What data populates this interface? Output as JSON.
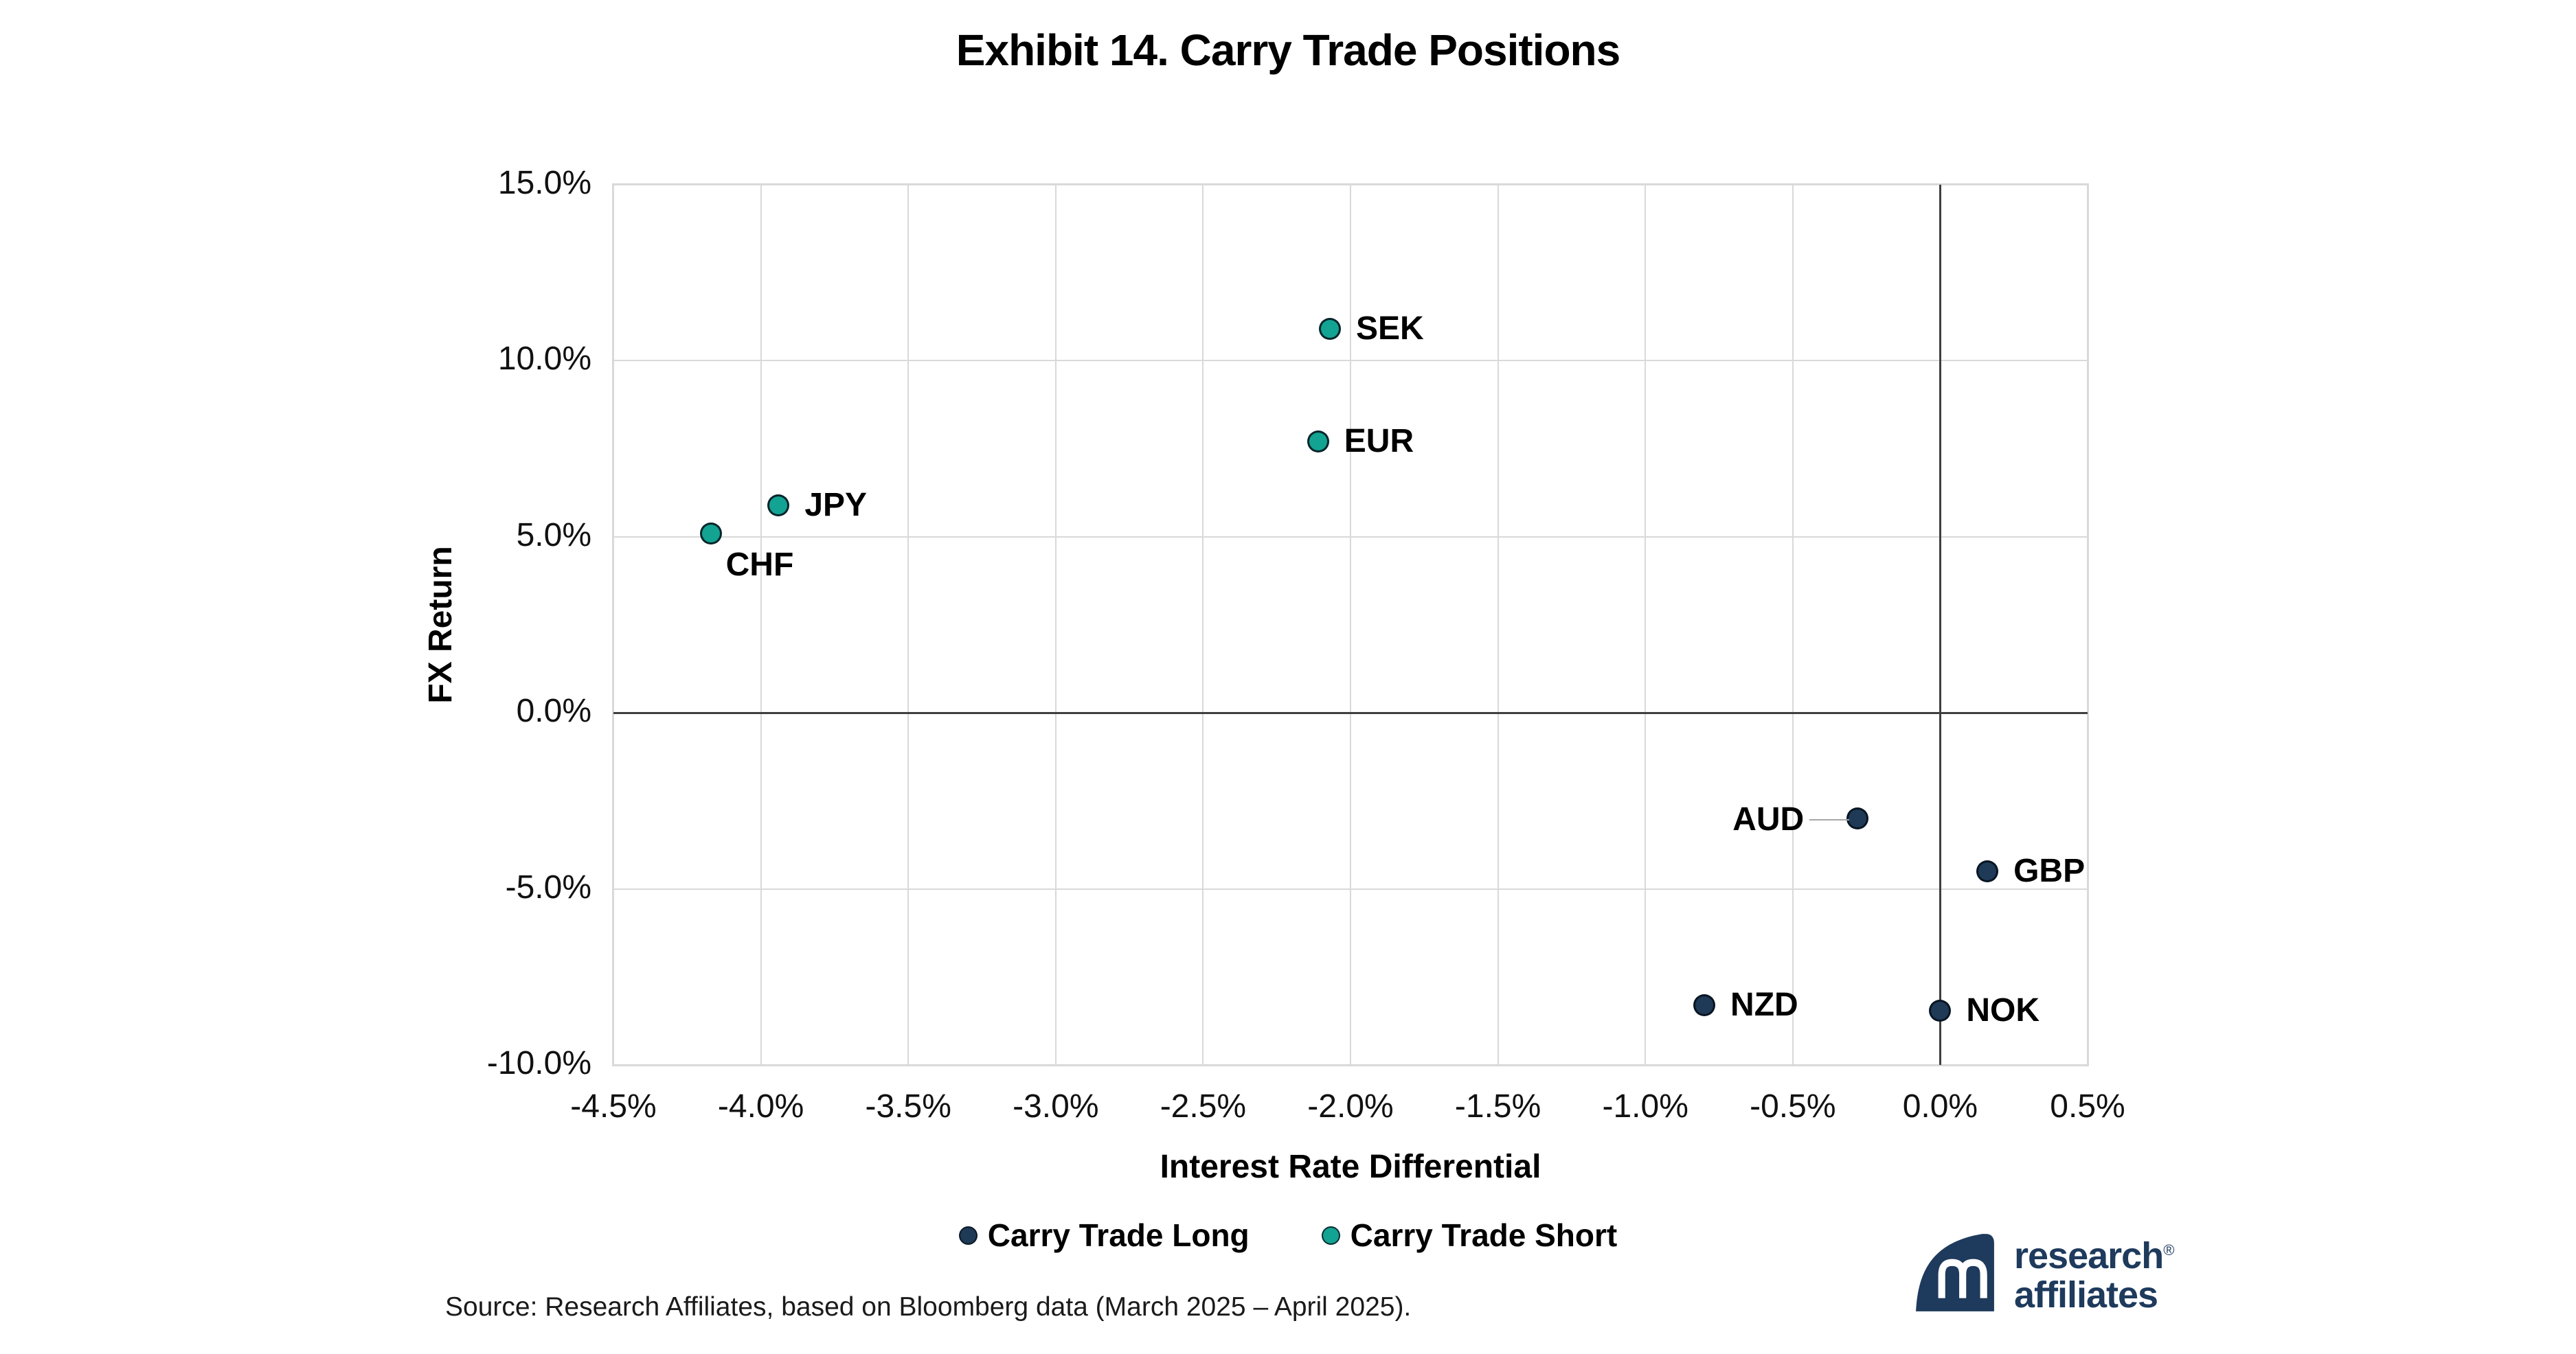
{
  "title": "Exhibit 14. Carry Trade Positions",
  "chart_data": {
    "type": "scatter",
    "title": "Exhibit 14. Carry Trade Positions",
    "xlabel": "Interest Rate Differential",
    "ylabel": "FX Return",
    "xlim": [
      -4.5,
      0.5
    ],
    "ylim": [
      -10.0,
      15.0
    ],
    "grid": true,
    "legend_position": "bottom",
    "x_tick_values": [
      -4.5,
      -4.0,
      -3.5,
      -3.0,
      -2.5,
      -2.0,
      -1.5,
      -1.0,
      -0.5,
      0.0,
      0.5
    ],
    "x_ticks": [
      "-4.5%",
      "-4.0%",
      "-3.5%",
      "-3.0%",
      "-2.5%",
      "-2.0%",
      "-1.5%",
      "-1.0%",
      "-0.5%",
      "0.0%",
      "0.5%"
    ],
    "y_tick_values": [
      15.0,
      10.0,
      5.0,
      0.0,
      -5.0,
      -10.0
    ],
    "y_ticks": [
      "15.0%",
      "10.0%",
      "5.0%",
      "0.0%",
      "-5.0%",
      "-10.0%"
    ],
    "series": [
      {
        "name": "Carry Trade Long",
        "color": "#1f3a57",
        "points": [
          {
            "label": "AUD",
            "x": -0.28,
            "y": -3.0,
            "label_side": "left-line"
          },
          {
            "label": "GBP",
            "x": 0.16,
            "y": -4.5,
            "label_side": "right"
          },
          {
            "label": "NZD",
            "x": -0.8,
            "y": -8.3,
            "label_side": "right"
          },
          {
            "label": "NOK",
            "x": 0.0,
            "y": -8.45,
            "label_side": "right"
          }
        ]
      },
      {
        "name": "Carry Trade Short",
        "color": "#13a392",
        "points": [
          {
            "label": "CHF",
            "x": -4.17,
            "y": 5.1,
            "label_side": "below-right"
          },
          {
            "label": "JPY",
            "x": -3.94,
            "y": 5.9,
            "label_side": "right"
          },
          {
            "label": "EUR",
            "x": -2.11,
            "y": 7.7,
            "label_side": "right"
          },
          {
            "label": "SEK",
            "x": -2.07,
            "y": 10.9,
            "label_side": "right"
          }
        ]
      }
    ]
  },
  "legend": {
    "items": [
      {
        "label": "Carry Trade Long",
        "color": "#1f3a57"
      },
      {
        "label": "Carry Trade Short",
        "color": "#13a392"
      }
    ]
  },
  "source_note": "Source: Research Affiliates, based on Bloomberg data (March 2025 – April 2025).",
  "logo": {
    "line1": "research",
    "line2": "affiliates",
    "registered": "®",
    "monogram": "RA"
  },
  "colors": {
    "long_navy": "#1f3a57",
    "short_teal": "#13a392",
    "gridline": "#d9d9d9",
    "zero_line": "#3f3f3f",
    "plot_border": "#d9d9d9",
    "logo_navy": "#1e3a5c",
    "leader_line": "#a6a6a6"
  }
}
